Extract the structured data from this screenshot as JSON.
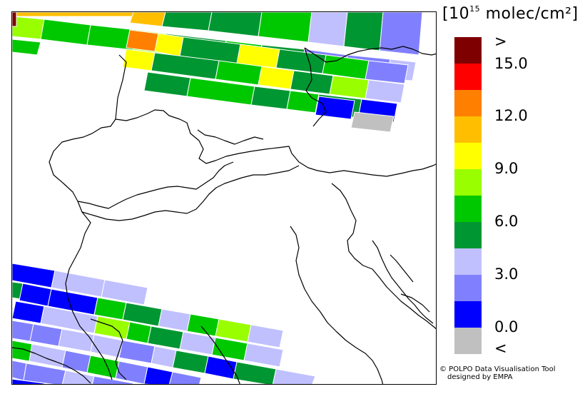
{
  "legend": {
    "unit_prefix": "[10",
    "unit_exponent": "15",
    "unit_suffix": " molec/cm²]",
    "colors": [
      "#7f0000",
      "#ff0000",
      "#ff7f00",
      "#ffbf00",
      "#ffff00",
      "#99ff00",
      "#00c800",
      "#009632",
      "#c0c0ff",
      "#8080ff",
      "#0000ff",
      "#c0c0c0"
    ],
    "labels": {
      "over": ">",
      "v15": "15.0",
      "v12": "12.0",
      "v9": "9.0",
      "v6": "6.0",
      "v3": "3.0",
      "v0": "0.0",
      "under": "<"
    }
  },
  "credit": {
    "line1": "© POLPO Data Visualisation Tool",
    "line2": "designed by EMPA"
  }
}
